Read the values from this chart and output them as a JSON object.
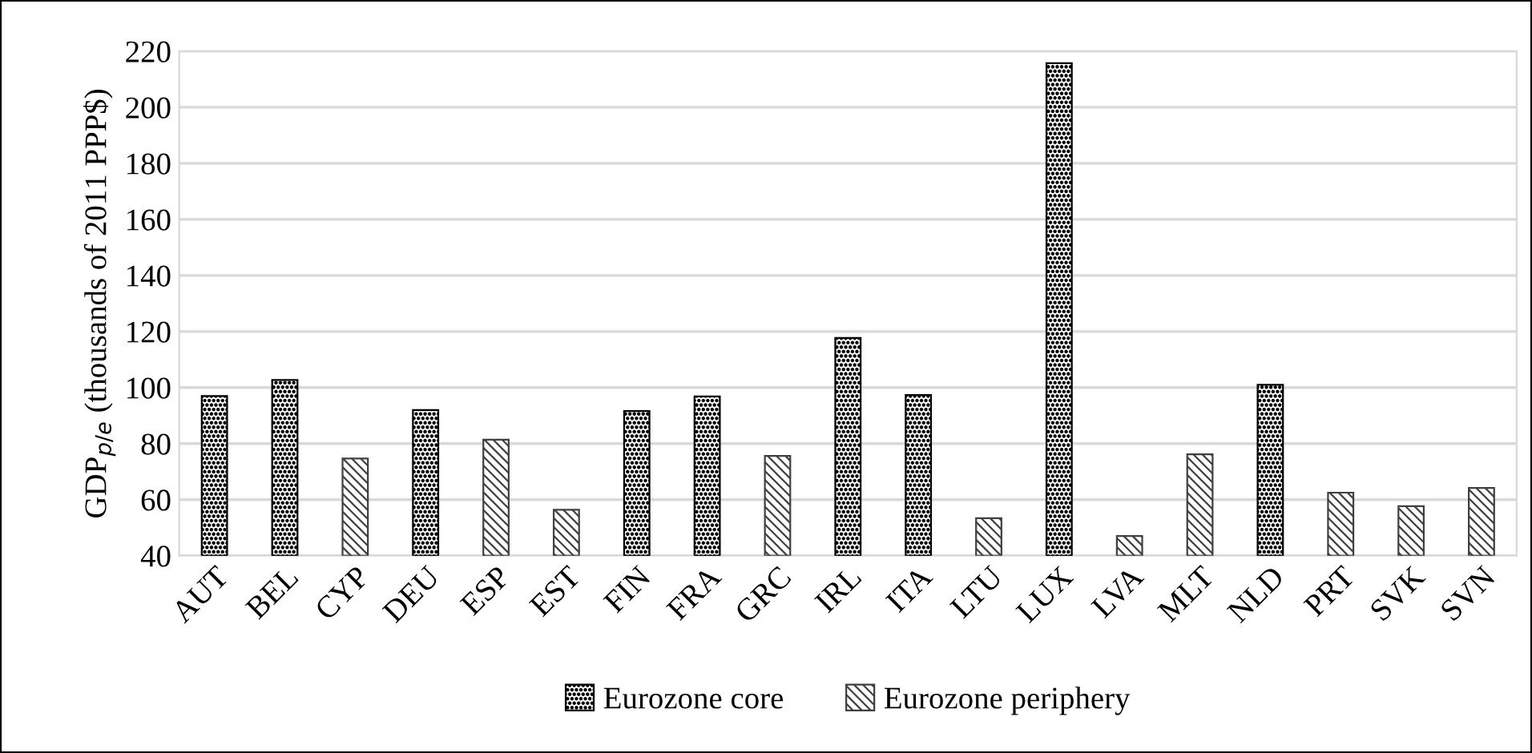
{
  "chart_data": {
    "type": "bar",
    "ylabel": "GDP$_{p/e}$ (thousands of 2011 PPP$)",
    "categories": [
      "AUT",
      "BEL",
      "CYP",
      "DEU",
      "ESP",
      "EST",
      "FIN",
      "FRA",
      "GRC",
      "IRL",
      "ITA",
      "LTU",
      "LUX",
      "LVA",
      "MLT",
      "NLD",
      "PRT",
      "SVK",
      "SVN"
    ],
    "series": [
      {
        "name": "Eurozone core",
        "color": "#000000",
        "values": [
          97,
          102.7,
          null,
          92,
          null,
          null,
          91.6,
          96.8,
          null,
          117.7,
          97.3,
          null,
          215.7,
          null,
          null,
          101,
          null,
          null,
          null
        ]
      },
      {
        "name": "Eurozone periphery",
        "color": "#404040",
        "values": [
          null,
          null,
          74.7,
          null,
          81.4,
          56.4,
          null,
          null,
          75.6,
          null,
          null,
          53.4,
          null,
          47,
          76.2,
          null,
          62.5,
          57.7,
          64.2
        ]
      }
    ],
    "ylim": [
      40,
      220
    ],
    "yticks": [
      40,
      60,
      80,
      100,
      120,
      140,
      160,
      180,
      200,
      220
    ],
    "grid": "y",
    "legend": "bottom"
  }
}
